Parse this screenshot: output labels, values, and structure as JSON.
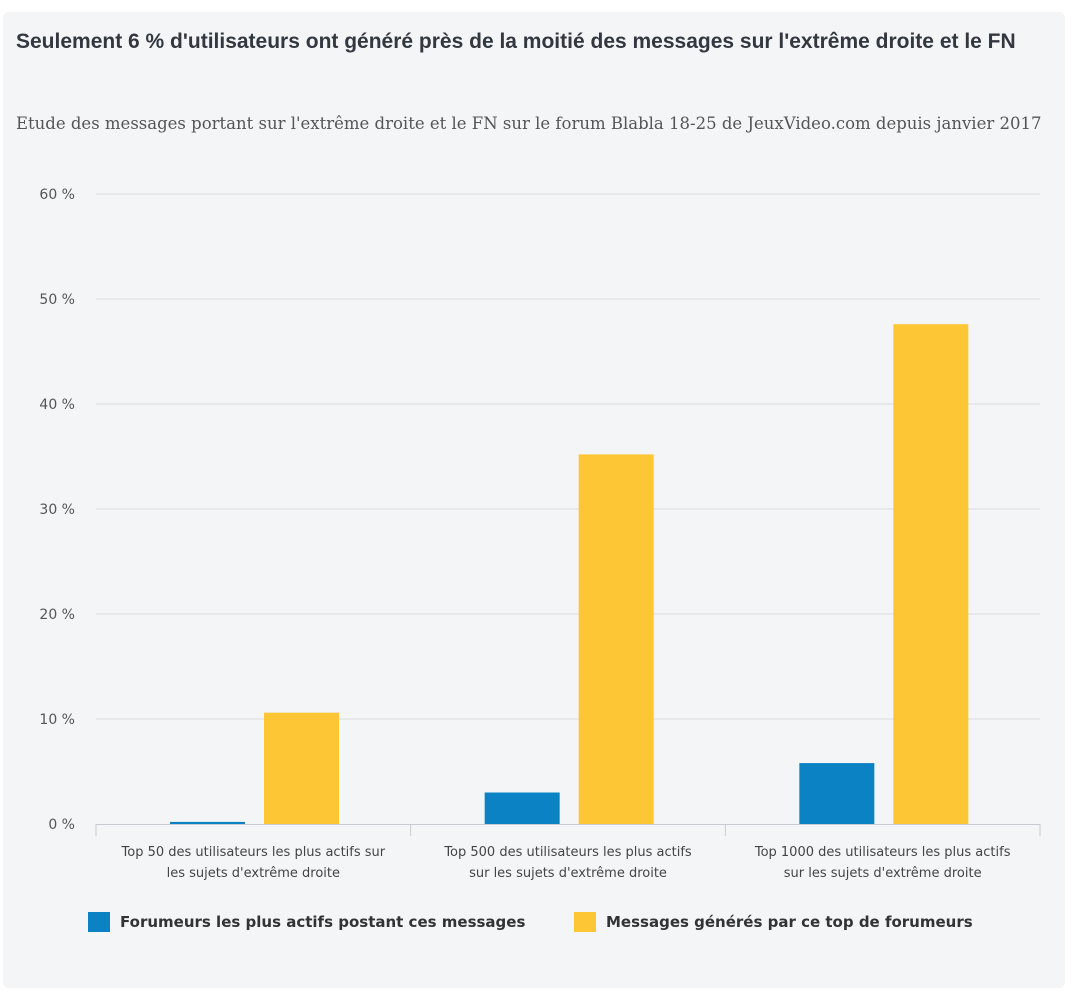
{
  "chart_data": {
    "type": "bar",
    "title": "Seulement 6 % d'utilisateurs ont généré près de la moitié des messages sur l'extrême droite et le FN",
    "subtitle": "Etude des messages portant sur l'extrême droite et le FN sur le forum Blabla 18-25 de JeuxVideo.com depuis janvier 2017",
    "categories": [
      [
        "Top 50 des utilisateurs les plus actifs sur",
        "les sujets d'extrême droite"
      ],
      [
        "Top 500 des utilisateurs les plus actifs",
        "sur les sujets d'extrême droite"
      ],
      [
        "Top 1000 des utilisateurs les plus actifs",
        "sur les sujets d'extrême droite"
      ]
    ],
    "series": [
      {
        "name": "Forumeurs les plus actifs postant ces messages",
        "color": "#0a82c3",
        "values": [
          0.2,
          3.0,
          5.8
        ]
      },
      {
        "name": "Messages générés par ce top de forumeurs",
        "color": "#fdc634",
        "values": [
          10.6,
          35.2,
          47.6
        ]
      }
    ],
    "yticks": [
      "0 %",
      "10 %",
      "20 %",
      "30 %",
      "40 %",
      "50 %",
      "60 %"
    ],
    "ylim": [
      0,
      60
    ],
    "xlabel": "",
    "ylabel": "",
    "grid": true,
    "legend": "bottom-left"
  }
}
